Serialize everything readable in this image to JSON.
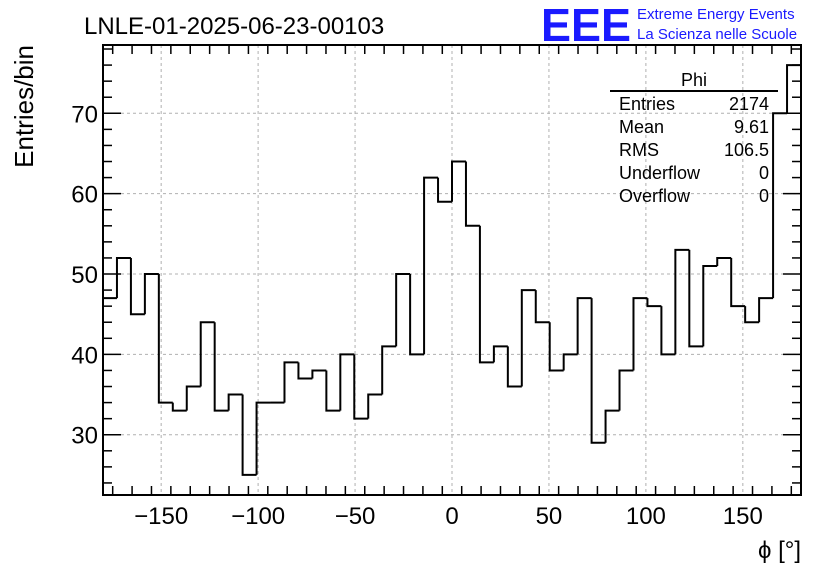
{
  "header": {
    "run_title": "LNLE-01-2025-06-23-00103",
    "logo_text": "EEE",
    "brand_line1": "Extreme Energy Events",
    "brand_line2": "La Scienza nelle Scuole"
  },
  "colors": {
    "brand": "#1a1aff",
    "histogram": "#000000",
    "grid": "#b0b0b0"
  },
  "stats_box": {
    "title": "Phi",
    "rows": [
      {
        "label": "Entries",
        "value": "2174"
      },
      {
        "label": "Mean",
        "value": "9.61"
      },
      {
        "label": "RMS",
        "value": "106.5"
      },
      {
        "label": "Underflow",
        "value": "0"
      },
      {
        "label": "Overflow",
        "value": "0"
      }
    ]
  },
  "chart_data": {
    "type": "bar",
    "style": "step-histogram",
    "xlabel": "ϕ [°]",
    "ylabel": "Entries/bin",
    "xlim": [
      -180,
      180
    ],
    "ylim": [
      22.5,
      78.5
    ],
    "bin_width": 7.2,
    "bin_low_edges": [
      -180,
      -172.8,
      -165.6,
      -158.4,
      -151.2,
      -144,
      -136.8,
      -129.6,
      -122.4,
      -115.2,
      -108,
      -100.8,
      -93.6,
      -86.4,
      -79.2,
      -72,
      -64.8,
      -57.6,
      -50.4,
      -43.2,
      -36,
      -28.8,
      -21.6,
      -14.4,
      -7.2,
      0,
      7.2,
      14.4,
      21.6,
      28.8,
      36,
      43.2,
      50.4,
      57.6,
      64.8,
      72,
      79.2,
      86.4,
      93.6,
      100.8,
      108,
      115.2,
      122.4,
      129.6,
      136.8,
      144,
      151.2,
      158.4,
      165.6,
      172.8
    ],
    "values": [
      47,
      52,
      45,
      50,
      34,
      33,
      36,
      44,
      33,
      35,
      25,
      34,
      34,
      39,
      37,
      38,
      33,
      40,
      32,
      35,
      41,
      50,
      40,
      62,
      59,
      64,
      56,
      39,
      41,
      36,
      48,
      44,
      38,
      40,
      47,
      29,
      33,
      38,
      47,
      46,
      40,
      53,
      41,
      51,
      52,
      46,
      44,
      47,
      70,
      76
    ],
    "x_ticks": [
      -150,
      -100,
      -50,
      0,
      50,
      100,
      150
    ],
    "x_tick_labels": [
      "−150",
      "−100",
      "−50",
      "0",
      "50",
      "100",
      "150"
    ],
    "y_ticks": [
      30,
      40,
      50,
      60,
      70
    ],
    "y_tick_labels": [
      "30",
      "40",
      "50",
      "60",
      "70"
    ],
    "grid": true,
    "legend": "stats box top-right"
  }
}
